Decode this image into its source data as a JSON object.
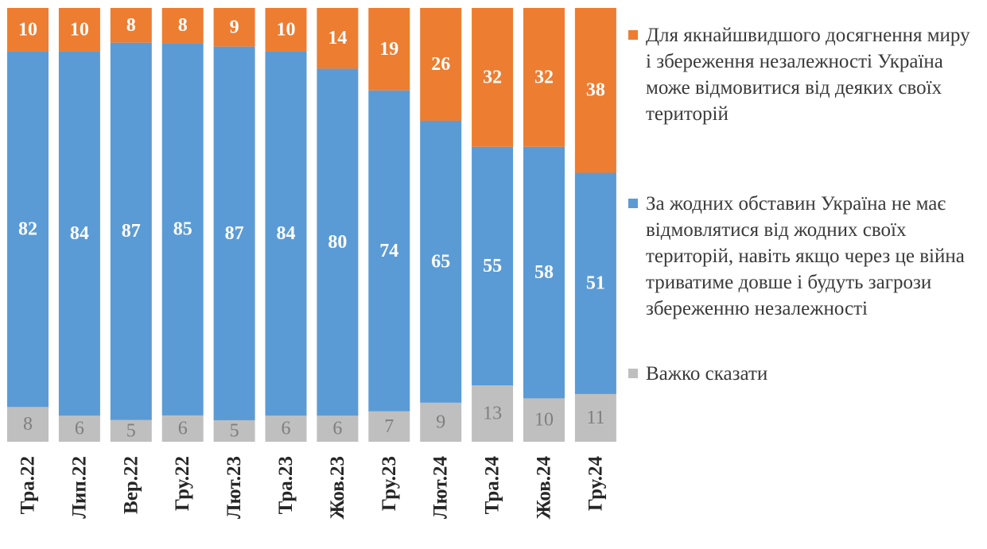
{
  "chart_data": {
    "type": "bar",
    "stacked": true,
    "normalized": true,
    "categories": [
      "Тра.22",
      "Лип.22",
      "Вер.22",
      "Гру.22",
      "Лют.23",
      "Тра.23",
      "Жов.23",
      "Гру.23",
      "Лют.24",
      "Тра.24",
      "Жов.24",
      "Гру.24"
    ],
    "series": [
      {
        "name": "Важко сказати",
        "color": "#bfbfbf",
        "label_color": "#7f7f7f",
        "values": [
          8,
          6,
          5,
          6,
          5,
          6,
          6,
          7,
          9,
          13,
          10,
          11
        ]
      },
      {
        "name": "За жодних обставин Україна не має відмовлятися від жодних своїх територій, навіть якщо через це війна триватиме довше і будуть загрози збереженню незалежності",
        "color": "#5b9bd5",
        "label_color": "#ffffff",
        "values": [
          82,
          84,
          87,
          85,
          87,
          84,
          80,
          74,
          65,
          55,
          58,
          51
        ]
      },
      {
        "name": "Для якнайшвидшого досягнення миру і збереження незалежності Україна може відмовитися від деяких своїх територій",
        "color": "#ed7d31",
        "label_color": "#ffffff",
        "values": [
          10,
          10,
          8,
          8,
          9,
          10,
          14,
          19,
          26,
          32,
          32,
          38
        ]
      }
    ],
    "title": "",
    "xlabel": "",
    "ylabel": "",
    "legend_position": "right"
  },
  "legend": {
    "items": [
      {
        "label": "Для якнайшвидшого досягнення миру і збереження незалежності Україна може відмовитися від деяких своїх територій",
        "color": "#ed7d31"
      },
      {
        "label": "За жодних обставин Україна не має відмовлятися від жодних своїх територій, навіть якщо через це війна триватиме довше і будуть загрози збереженню незалежності",
        "color": "#5b9bd5"
      },
      {
        "label": "Важко сказати",
        "color": "#bfbfbf"
      }
    ]
  }
}
